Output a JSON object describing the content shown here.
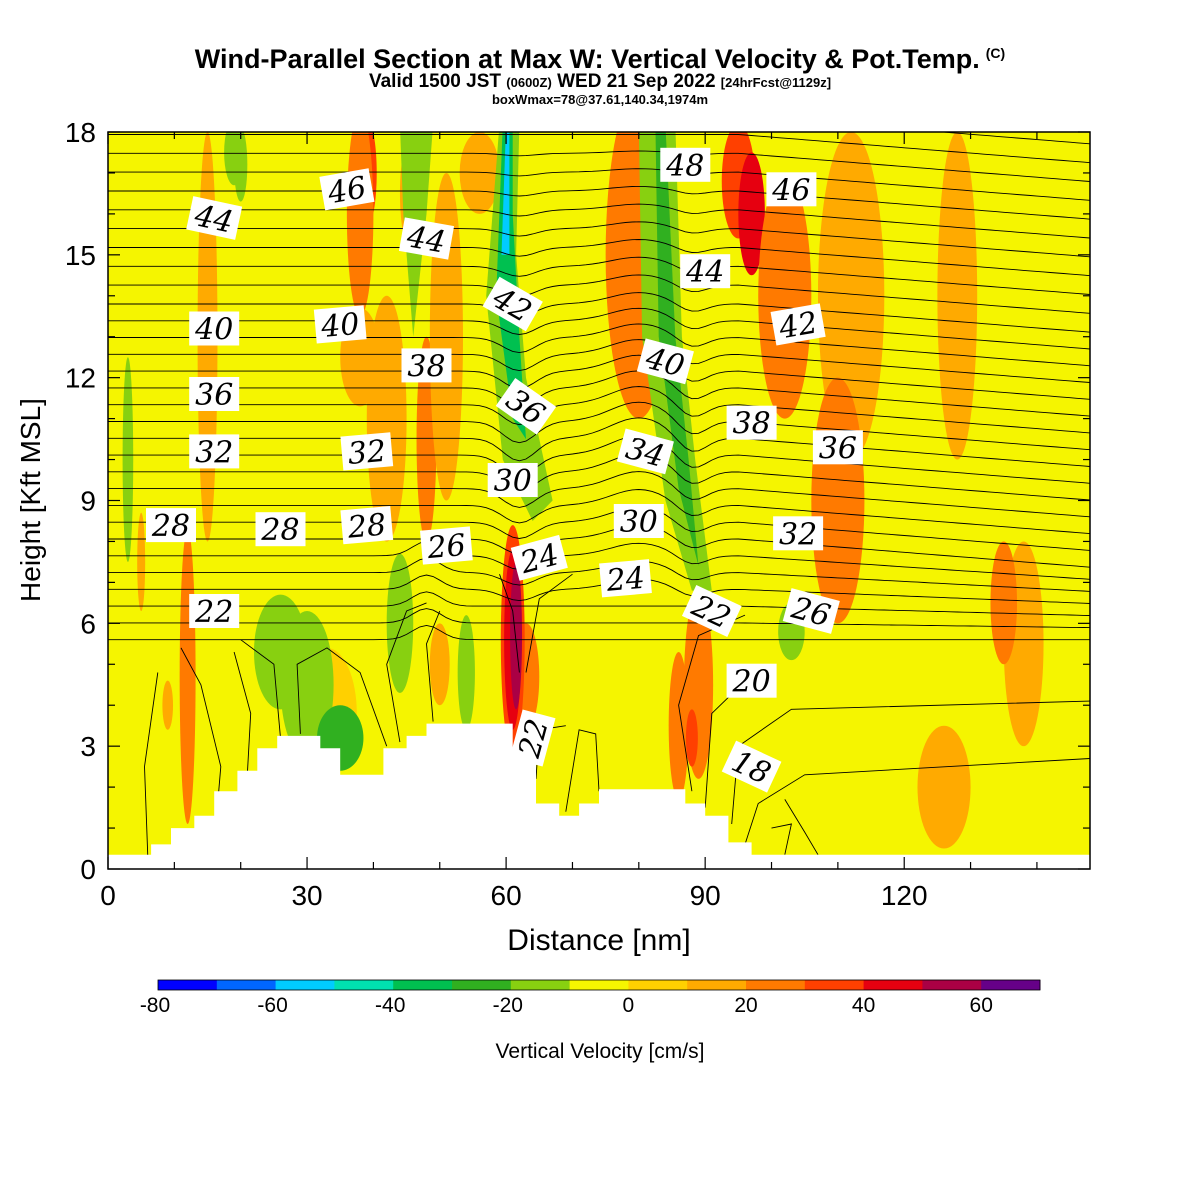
{
  "title": {
    "main": "Wind-Parallel Section at Max W: Vertical Velocity & Pot.Temp.",
    "copyright": "(C)",
    "valid_prefix": "Valid 1500 JST",
    "valid_utc": "(0600Z)",
    "valid_date": "WED 21 Sep 2022",
    "forecast": "[24hrFcst@1129z]",
    "boxwmax": "boxWmax=78@37.61,140.34,1974m"
  },
  "chart_data": {
    "type": "heatmap",
    "xlabel": "Distance [nm]",
    "ylabel": "Height [Kft MSL]",
    "xlim": [
      0,
      148
    ],
    "ylim": [
      0,
      18
    ],
    "xticks": [
      0,
      30,
      60,
      90,
      120
    ],
    "yticks": [
      0,
      3,
      6,
      9,
      12,
      15,
      18
    ],
    "colorbar": {
      "label": "Vertical Velocity [cm/s]",
      "ticks": [
        -80,
        -60,
        -40,
        -20,
        0,
        20,
        40,
        60
      ],
      "levels": [
        -80,
        -70,
        -60,
        -50,
        -40,
        -30,
        -20,
        -10,
        0,
        10,
        20,
        30,
        40,
        50,
        60,
        70
      ],
      "colors": [
        "#0000ff",
        "#0066ff",
        "#00ccff",
        "#00e0b0",
        "#00c050",
        "#30b020",
        "#88d010",
        "#f5f500",
        "#ffd000",
        "#ffaa00",
        "#ff7a00",
        "#ff4000",
        "#e60010",
        "#aa0044",
        "#660088"
      ]
    },
    "terrain": [
      [
        0,
        0.35
      ],
      [
        6.5,
        0.35
      ],
      [
        6.5,
        0.6
      ],
      [
        9.5,
        0.6
      ],
      [
        9.5,
        1.0
      ],
      [
        13,
        1.0
      ],
      [
        13,
        1.3
      ],
      [
        16,
        1.3
      ],
      [
        16,
        1.9
      ],
      [
        19.5,
        1.9
      ],
      [
        19.5,
        2.4
      ],
      [
        22.5,
        2.4
      ],
      [
        22.5,
        2.95
      ],
      [
        25.5,
        2.95
      ],
      [
        25.5,
        3.25
      ],
      [
        32,
        3.25
      ],
      [
        32,
        2.95
      ],
      [
        35,
        2.95
      ],
      [
        35,
        2.3
      ],
      [
        41.5,
        2.3
      ],
      [
        41.5,
        2.95
      ],
      [
        45,
        2.95
      ],
      [
        45,
        3.25
      ],
      [
        48,
        3.25
      ],
      [
        48,
        3.55
      ],
      [
        61,
        3.55
      ],
      [
        61,
        2.7
      ],
      [
        64.5,
        2.7
      ],
      [
        64.5,
        1.6
      ],
      [
        68,
        1.6
      ],
      [
        68,
        1.3
      ],
      [
        71,
        1.3
      ],
      [
        71,
        1.6
      ],
      [
        74,
        1.6
      ],
      [
        74,
        1.95
      ],
      [
        87,
        1.95
      ],
      [
        87,
        1.6
      ],
      [
        90,
        1.6
      ],
      [
        90,
        1.3
      ],
      [
        93.5,
        1.3
      ],
      [
        93.5,
        0.65
      ],
      [
        97,
        0.65
      ],
      [
        97,
        0.35
      ],
      [
        148,
        0.35
      ]
    ],
    "theta_labels": [
      {
        "text": "44",
        "x": 16,
        "y": 15.9,
        "r": 12
      },
      {
        "text": "46",
        "x": 36,
        "y": 16.6,
        "r": -10
      },
      {
        "text": "44",
        "x": 48,
        "y": 15.4,
        "r": 10
      },
      {
        "text": "48",
        "x": 87,
        "y": 17.2,
        "r": 0
      },
      {
        "text": "46",
        "x": 103,
        "y": 16.6,
        "r": 0
      },
      {
        "text": "42",
        "x": 61,
        "y": 13.8,
        "r": 30
      },
      {
        "text": "44",
        "x": 90,
        "y": 14.6,
        "r": 0
      },
      {
        "text": "40",
        "x": 16,
        "y": 13.2,
        "r": 0
      },
      {
        "text": "40",
        "x": 35,
        "y": 13.3,
        "r": -5
      },
      {
        "text": "42",
        "x": 104,
        "y": 13.3,
        "r": -10
      },
      {
        "text": "38",
        "x": 48,
        "y": 12.3,
        "r": 0
      },
      {
        "text": "40",
        "x": 84,
        "y": 12.4,
        "r": 15
      },
      {
        "text": "36",
        "x": 16,
        "y": 11.6,
        "r": 0
      },
      {
        "text": "36",
        "x": 63,
        "y": 11.3,
        "r": 35
      },
      {
        "text": "38",
        "x": 97,
        "y": 10.9,
        "r": 0
      },
      {
        "text": "36",
        "x": 110,
        "y": 10.3,
        "r": 0
      },
      {
        "text": "32",
        "x": 16,
        "y": 10.2,
        "r": 0
      },
      {
        "text": "32",
        "x": 39,
        "y": 10.2,
        "r": -5
      },
      {
        "text": "34",
        "x": 81,
        "y": 10.2,
        "r": 15
      },
      {
        "text": "30",
        "x": 61,
        "y": 9.5,
        "r": 0
      },
      {
        "text": "28",
        "x": 9.5,
        "y": 8.4,
        "r": 0
      },
      {
        "text": "28",
        "x": 26,
        "y": 8.3,
        "r": 0
      },
      {
        "text": "28",
        "x": 39,
        "y": 8.4,
        "r": -5
      },
      {
        "text": "30",
        "x": 80,
        "y": 8.5,
        "r": 0
      },
      {
        "text": "32",
        "x": 104,
        "y": 8.2,
        "r": 0
      },
      {
        "text": "26",
        "x": 51,
        "y": 7.9,
        "r": -5
      },
      {
        "text": "24",
        "x": 65,
        "y": 7.6,
        "r": -15
      },
      {
        "text": "24",
        "x": 78,
        "y": 7.1,
        "r": -5
      },
      {
        "text": "22",
        "x": 16,
        "y": 6.3,
        "r": 0
      },
      {
        "text": "22",
        "x": 91,
        "y": 6.3,
        "r": 25
      },
      {
        "text": "26",
        "x": 106,
        "y": 6.3,
        "r": 15
      },
      {
        "text": "20",
        "x": 97,
        "y": 4.6,
        "r": 0
      },
      {
        "text": "22",
        "x": 64,
        "y": 3.2,
        "r": -75
      },
      {
        "text": "18",
        "x": 97,
        "y": 2.5,
        "r": 25
      }
    ]
  }
}
